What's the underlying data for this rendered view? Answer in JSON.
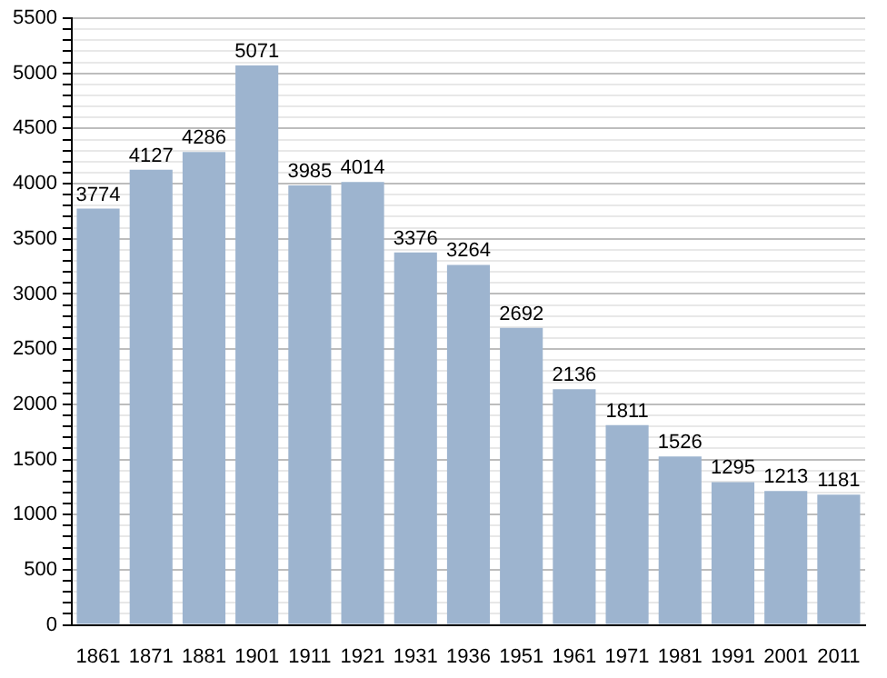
{
  "chart_data": {
    "type": "bar",
    "categories": [
      "1861",
      "1871",
      "1881",
      "1901",
      "1911",
      "1921",
      "1931",
      "1936",
      "1951",
      "1961",
      "1971",
      "1981",
      "1991",
      "2001",
      "2011"
    ],
    "values": [
      3774,
      4127,
      4286,
      5071,
      3985,
      4014,
      3376,
      3264,
      2692,
      2136,
      1811,
      1526,
      1295,
      1213,
      1181
    ],
    "color": "#9db4cf",
    "ylim": [
      0,
      5500
    ],
    "yticks": [
      0,
      {
        "value": 100,
        "label": null
      },
      {
        "value": 200,
        "label": null
      },
      {
        "value": 300,
        "label": null
      },
      {
        "value": 400,
        "label": null
      },
      500,
      {
        "value": 600,
        "label": null
      },
      {
        "value": 700,
        "label": null
      },
      {
        "value": 800,
        "label": null
      },
      {
        "value": 900,
        "label": null
      },
      1000,
      {
        "value": 1100,
        "label": null
      },
      {
        "value": 1200,
        "label": null
      },
      {
        "value": 1300,
        "label": null
      },
      {
        "value": 1400,
        "label": null
      },
      1500,
      {
        "value": 1600,
        "label": null
      },
      {
        "value": 1700,
        "label": null
      },
      {
        "value": 1800,
        "label": null
      },
      {
        "value": 1900,
        "label": null
      },
      2000,
      {
        "value": 2100,
        "label": null
      },
      {
        "value": 2200,
        "label": null
      },
      {
        "value": 2300,
        "label": null
      },
      {
        "value": 2400,
        "label": null
      },
      2500,
      {
        "value": 2600,
        "label": null
      },
      {
        "value": 2700,
        "label": null
      },
      {
        "value": 2800,
        "label": null
      },
      {
        "value": 2900,
        "label": null
      },
      3000,
      {
        "value": 3100,
        "label": null
      },
      {
        "value": 3200,
        "label": null
      },
      {
        "value": 3300,
        "label": null
      },
      {
        "value": 3400,
        "label": null
      },
      3500,
      {
        "value": 3600,
        "label": null
      },
      {
        "value": 3700,
        "label": null
      },
      {
        "value": 3800,
        "label": null
      },
      {
        "value": 3900,
        "label": null
      },
      4000,
      {
        "value": 4100,
        "label": null
      },
      {
        "value": 4200,
        "label": null
      },
      {
        "value": 4300,
        "label": null
      },
      {
        "value": 4400,
        "label": null
      },
      4500,
      {
        "value": 4600,
        "label": null
      },
      {
        "value": 4700,
        "label": null
      },
      {
        "value": 4800,
        "label": null
      },
      {
        "value": 4900,
        "label": null
      },
      5000,
      {
        "value": 5100,
        "label": null
      },
      {
        "value": 5200,
        "label": null
      },
      {
        "value": 5300,
        "label": null
      },
      {
        "value": 5400,
        "label": null
      },
      5500
    ],
    "grid": "y",
    "data_labels": true
  }
}
